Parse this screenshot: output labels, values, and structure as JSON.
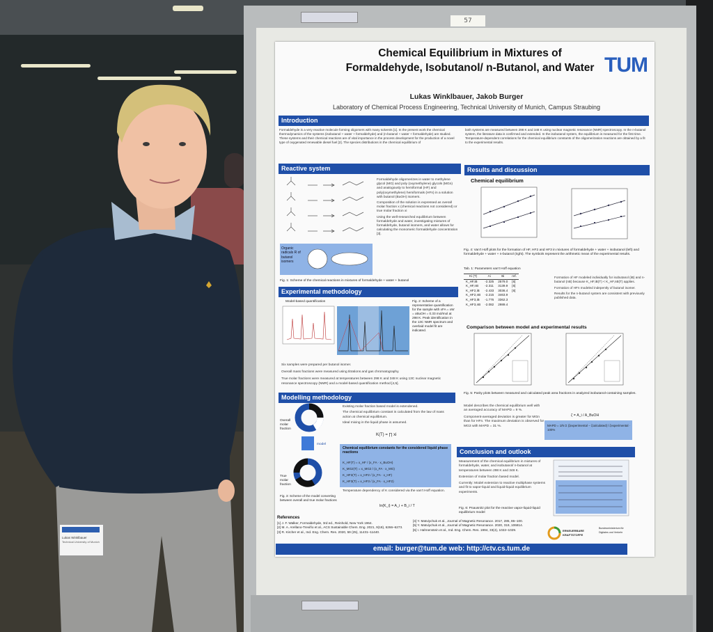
{
  "scene": {
    "room_note": "57"
  },
  "poster": {
    "title_line1": "Chemical Equilibrium in Mixtures of",
    "title_line2": "Formaldehyde, Isobutanol/ n-Butanol, and Water",
    "logo": "TUM",
    "authors": "Lukas Winklbauer, Jakob Burger",
    "affiliation": "Laboratory of Chemical Process Engineering, Technical University of Munich, Campus Straubing",
    "sections": {
      "introduction": "Introduction",
      "reactive_system": "Reactive system",
      "experimental_methodology": "Experimental methodology",
      "modelling_methodology": "Modelling methodology",
      "results_discussion": "Results and discussion",
      "conclusion": "Conclusion and outlook"
    },
    "intro_left": "Formaldehyde is a very reactive molecule forming oligomers with many solvents [1]. In the present work the chemical thermodynamics of the systems (isobutanol + water + formaldehyde) and (n-butanol + water + formaldehyde) are studied. These systems and their chemical reactions are of vital importance in the process development for the production of a novel type of oxygenated renewable diesel fuel [2]. The species distributions in the chemical equilibrium of",
    "intro_right": "both systems are measured between 298 K and 348 K using nuclear magnetic resonance (NMR) spectroscopy. In the n-butanol system, the literature data is confirmed and extended. In the isobutanol system, the equilibrium is measured for the first time. Temperature-dependent correlations for the chemical equilibrium constants of the oligomerization reactions are obtained by a fit to the experimental results.",
    "reactive_bullets": [
      "Formaldehyde oligomerizes in water to methylene glycol (MG) and poly (oxymethylene) glycols (MGn) and analogously to hemiformal (HF) and poly(oxymethylene) hemiformals (HFn) in a solution with butanol (BuOH) isomers.",
      "Composition of the solution is expressed as overall molar fraction x (chemical reactions not considered) or true molar fraction xi",
      "Using the well-researched equilibrium between formaldehyde and water, investigating mixtures of formaldehyde, butanol isomers, and water allows for calculating the monomeric formaldehyde concentration [3]."
    ],
    "organic_radicals": "Organic radicals R of butanol isomers",
    "fig1_caption": "Fig. 1: Scheme of the chemical reactions in mixtures of formaldehyde + water + butanol",
    "model_based_quant": "Model-based quantification",
    "fig2_caption": "Fig. 2: Scheme of a representative quantification for the sample with xFA = xW = xBuOH = 0.33 mol/mol at 298 K. Peak identification in the 13C NMR spectrum and overlaid model fit are indicated.",
    "exp_bullets": [
      "Six samples were prepared per butanol isomer.",
      "Overall mass fractions were measured using titrations and gas chromatography.",
      "True molar fractions were measured at temperatures between 298 K and 348 K using 13C nuclear magnetic resonance spectroscopy (NMR) and a model-based quantification method [4,5]."
    ],
    "model_bullets": [
      "Existing molar fraction based model is extendened.",
      "The chemical equilibrium constant is calculated from the law of mass action at chemical equilibrium.",
      "Ideal mixing in the liquid phase is assumed."
    ],
    "overall_molar_fraction": "Overall molar fraction",
    "true_molar_fraction": "True molar fraction",
    "model_arrow": "model",
    "k_formula": "K(T) = ∏ xi",
    "eq_box_title": "Chemical equilibrium constants for the considered liquid phase reactions",
    "eq_box_lines": [
      "K_HF(T) = x_HF / (x_FA · x_BuOH)",
      "K_MG2(T) = x_MG2 / (x_FA · x_MG)",
      "K_HF2(T) = x_HF2 / (x_FA · x_HF)",
      "K_HF3(T) = x_HF3 / (x_FA · x_HF2)"
    ],
    "temp_dependency": "Temperature dependency of K considered via the van't Hoff equation.",
    "vant_hoff": "ln(K_i) = A_i + B_i / T",
    "fig3_caption": "Fig. 3: Scheme of the model converting between overall and true molar fractions",
    "chem_eq_head": "Chemical equilibrium",
    "fig4_caption": "Fig. 4: Van't Hoff plots for the formation of HF, HF2 and HF3 in mixtures of formaldehyde + water + isobutanol (left) and formaldehyde + water + n-butanol (right). The symbols represent the arithmetic mean of the experimental results.",
    "tab1_caption": "Tab. 1: Parameters van't Hoff equation",
    "tab1_headers": [
      "Ki (T)",
      "Ai",
      "Bi",
      "ref."
    ],
    "tab1_rows": [
      [
        "K_HF,iB",
        "-2.325",
        "2579.0",
        "[6]"
      ],
      [
        "K_HF,nB",
        "-2.311",
        "3139.9",
        "[6]"
      ],
      [
        "K_HF2,iB",
        "-2.433",
        "3036.4",
        "[6]"
      ],
      [
        "K_HF2,nB",
        "-2.215",
        "3463.9",
        ""
      ],
      [
        "K_HF3,iB",
        "-1.776",
        "3362.3",
        ""
      ],
      [
        "K_HF3,nB",
        "-2.082",
        "2989.4",
        ""
      ]
    ],
    "tab_bullets": [
      "Formation of HF modeled individually for isobutanol (iB) and n-butanol (nB) because K_HF,iB(T) < K_HF,nB(T) applies.",
      "Formation of HFn modeled indepently of butanol isomer.",
      "Results for the n-butanol system are consistent with previously published data."
    ],
    "comparison_head": "Comparison between model and experimental results",
    "fig5_caption": "Fig. 5: Parity plots between measured and calculated peak area fractions in analyzed isobutanol-containing samples.",
    "comp_bullets": [
      "Model describes the chemical equilibrium well with an averaged accuracy of MAPD = 9 %.",
      "Component-averaged deviation is greater for MGn than for HFn. The maximum deviation is observed for MG3 with MAPD = 31 %."
    ],
    "zeta_formula": "ζ = A_i / A_BuOH",
    "mapd_formula": "MAPD = 1/N Σ |ζexperimental − ζcalculated| / ζexperimental · 100%",
    "conclusion_bullets": [
      "Measurement of the chemical equilibrium in mixtures of formaldehyde, water, and isobutanol/ n-butanol at temperatures between 298 K and 348 K.",
      "Extension of molar fraction based model.",
      "Currently: Model extension to reactive multiphase systems and fit to vapor-liquid and liquid-liquid equilibrium experiments."
    ],
    "fig6_caption": "Fig. 6: Pnausnitz plot for the reactive vapor-liquid-liquid equilibrium model",
    "references_head": "References",
    "references_left": [
      "[1] J. F. Walker, Formaldehyde, 3rd ed., Reinhold, New York 1964.",
      "[2] M. A. Arellano-Treviño et al., ACS Sustainable Chem. Eng. 2021, 9(18), 6266–6273.",
      "[3] R. Kircher et al., Ind. Eng. Chem. Res. 2020, 59 (25), 11431–11440."
    ],
    "references_right": [
      "[4] Y. Matviychuk et al., Journal of Magnetic Resonance. 2017, 285, 86–100.",
      "[5] Y. Matviychuk et al., Journal of Magnetic Resonance. 2020, 319, 106814.",
      "[6] I. Hahnenstein et al., Ind. Eng. Chem. Res. 1994, 33(4), 1022–1029."
    ],
    "sponsor1": "ERNEUERBARE KRAFTSTOFFE",
    "sponsor2": "Bundesministerium für Digitales und Verkehr",
    "footer": "email: burger@tum.de   web: http://ctv.cs.tum.de"
  },
  "badge": {
    "line1": "Lukas Winklbauer",
    "line2": "Technical University of Munich"
  },
  "colors": {
    "section_blue": "#1f4fa8",
    "highlight_blue": "#8fb3e6",
    "sweater": "#1e2a3a",
    "trousers": "#9a9a98"
  }
}
